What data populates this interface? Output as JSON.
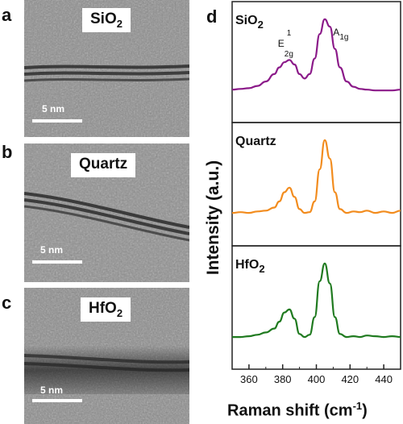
{
  "panels": {
    "a": {
      "letter": "a",
      "tag_main": "SiO",
      "tag_sub": "2",
      "scale_label": "5 nm"
    },
    "b": {
      "letter": "b",
      "tag_main": "Quartz",
      "tag_sub": "",
      "scale_label": "5 nm"
    },
    "c": {
      "letter": "c",
      "tag_main": "HfO",
      "tag_sub": "2",
      "scale_label": "5 nm"
    },
    "d": {
      "letter": "d"
    }
  },
  "chart_data": {
    "type": "line",
    "xlabel": "Raman shift  (cm",
    "xlabel_sup": "-1",
    "xlabel_close": ")",
    "ylabel": "Intensity (a.u.)",
    "xlim": [
      350,
      450
    ],
    "x_ticks": [
      "360",
      "380",
      "400",
      "420",
      "440"
    ],
    "peak_labels": {
      "e_main": "E",
      "e_sup": "1",
      "e_sub": "2g",
      "a_main": "A",
      "a_sub": "1g"
    },
    "series": [
      {
        "name_main": "SiO",
        "name_sub": "2",
        "color": "#8b1a89",
        "x": [
          350,
          355,
          360,
          365,
          370,
          375,
          378,
          381,
          384,
          387,
          390,
          393,
          396,
          399,
          402,
          405,
          408,
          411,
          414,
          418,
          422,
          426,
          430,
          435,
          440,
          445,
          450
        ],
        "y": [
          0.03,
          0.04,
          0.05,
          0.08,
          0.14,
          0.24,
          0.33,
          0.4,
          0.43,
          0.37,
          0.24,
          0.18,
          0.24,
          0.45,
          0.78,
          0.98,
          0.88,
          0.58,
          0.33,
          0.14,
          0.07,
          0.04,
          0.03,
          0.02,
          0.02,
          0.02,
          0.03
        ]
      },
      {
        "name_main": "Quartz",
        "name_sub": "",
        "color": "#f28c1e",
        "x": [
          350,
          355,
          360,
          365,
          370,
          375,
          378,
          381,
          384,
          387,
          390,
          393,
          396,
          399,
          402,
          405,
          408,
          411,
          414,
          418,
          422,
          426,
          430,
          435,
          440,
          445,
          450
        ],
        "y": [
          0.03,
          0.04,
          0.03,
          0.05,
          0.06,
          0.1,
          0.18,
          0.3,
          0.36,
          0.24,
          0.08,
          0.03,
          0.04,
          0.18,
          0.6,
          0.98,
          0.74,
          0.3,
          0.08,
          0.03,
          0.05,
          0.04,
          0.06,
          0.03,
          0.05,
          0.03,
          0.06
        ]
      },
      {
        "name_main": "HfO",
        "name_sub": "2",
        "color": "#1f7a1f",
        "x": [
          350,
          355,
          360,
          365,
          370,
          375,
          378,
          381,
          384,
          387,
          390,
          393,
          396,
          399,
          402,
          405,
          408,
          411,
          414,
          418,
          422,
          426,
          430,
          435,
          440,
          445,
          450
        ],
        "y": [
          0.02,
          0.02,
          0.03,
          0.05,
          0.08,
          0.13,
          0.22,
          0.34,
          0.38,
          0.26,
          0.06,
          0.02,
          0.05,
          0.28,
          0.75,
          0.98,
          0.72,
          0.28,
          0.06,
          0.02,
          0.03,
          0.02,
          0.04,
          0.03,
          0.02,
          0.03,
          0.02
        ]
      }
    ]
  }
}
